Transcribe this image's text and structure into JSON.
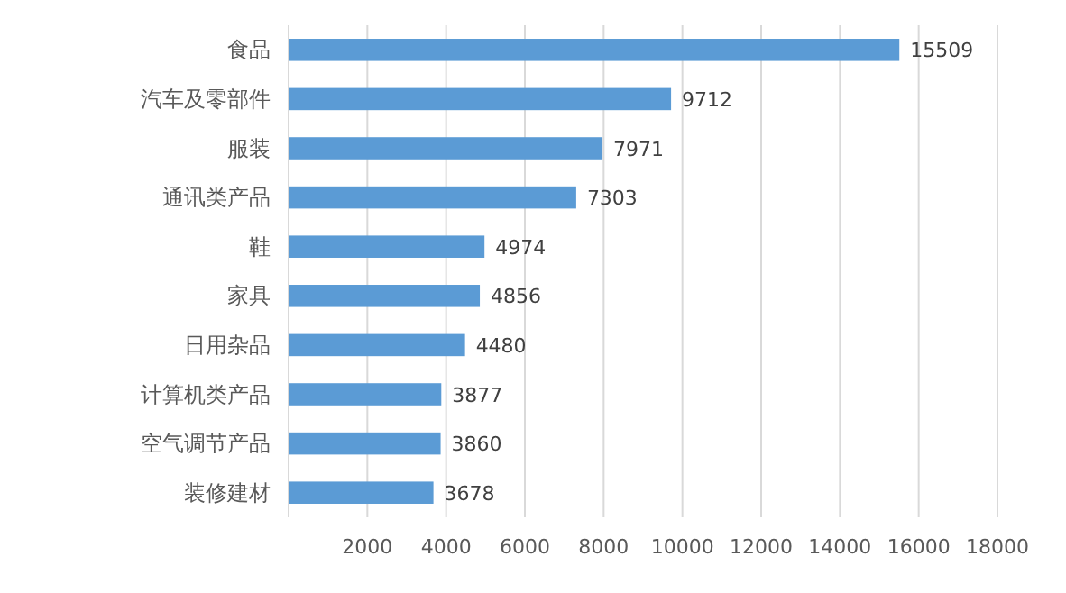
{
  "chart_data": {
    "type": "bar",
    "orientation": "horizontal",
    "categories": [
      "食品",
      "汽车及零部件",
      "服装",
      "通讯类产品",
      "鞋",
      "家具",
      "日用杂品",
      "计算机类产品",
      "空气调节产品",
      "装修建材"
    ],
    "values": [
      15509,
      9712,
      7971,
      7303,
      4974,
      4856,
      4480,
      3877,
      3860,
      3678
    ],
    "color": "#5b9bd5",
    "xlim": [
      0,
      18000
    ],
    "xticks": [
      {
        "value": 0,
        "label": null
      },
      2000,
      4000,
      6000,
      8000,
      10000,
      12000,
      14000,
      16000,
      18000
    ],
    "grid": "x",
    "data_labels": true
  }
}
